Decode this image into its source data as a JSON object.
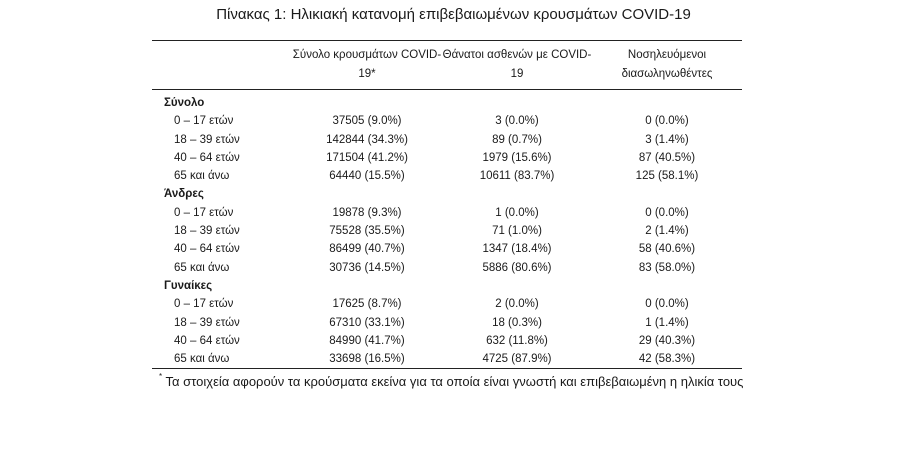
{
  "title": "Πίνακας 1: Ηλικιακή κατανομή επιβεβαιωμένων κρουσμάτων COVID-19",
  "headers": {
    "col1": "Σύνολο κρουσμάτων COVID-19*",
    "col2": "Θάνατοι ασθενών με COVID-19",
    "col3": "Νοσηλευόμενοι διασωληνωθέντες"
  },
  "groups": [
    {
      "name": "Σύνολο",
      "rows": [
        {
          "age": "0 – 17 ετών",
          "cases": "37505 (9.0%)",
          "deaths": "3 (0.0%)",
          "intubated": "0 (0.0%)"
        },
        {
          "age": "18 – 39 ετών",
          "cases": "142844 (34.3%)",
          "deaths": "89 (0.7%)",
          "intubated": "3 (1.4%)"
        },
        {
          "age": "40 – 64 ετών",
          "cases": "171504 (41.2%)",
          "deaths": "1979 (15.6%)",
          "intubated": "87 (40.5%)"
        },
        {
          "age": "65 και άνω",
          "cases": "64440 (15.5%)",
          "deaths": "10611 (83.7%)",
          "intubated": "125 (58.1%)"
        }
      ]
    },
    {
      "name": "Άνδρες",
      "rows": [
        {
          "age": "0 – 17 ετών",
          "cases": "19878 (9.3%)",
          "deaths": "1 (0.0%)",
          "intubated": "0 (0.0%)"
        },
        {
          "age": "18 – 39 ετών",
          "cases": "75528 (35.5%)",
          "deaths": "71 (1.0%)",
          "intubated": "2 (1.4%)"
        },
        {
          "age": "40 – 64 ετών",
          "cases": "86499 (40.7%)",
          "deaths": "1347 (18.4%)",
          "intubated": "58 (40.6%)"
        },
        {
          "age": "65 και άνω",
          "cases": "30736 (14.5%)",
          "deaths": "5886 (80.6%)",
          "intubated": "83 (58.0%)"
        }
      ]
    },
    {
      "name": "Γυναίκες",
      "rows": [
        {
          "age": "0 – 17 ετών",
          "cases": "17625 (8.7%)",
          "deaths": "2 (0.0%)",
          "intubated": "0 (0.0%)"
        },
        {
          "age": "18 – 39 ετών",
          "cases": "67310 (33.1%)",
          "deaths": "18 (0.3%)",
          "intubated": "1 (1.4%)"
        },
        {
          "age": "40 – 64 ετών",
          "cases": "84990 (41.7%)",
          "deaths": "632 (11.8%)",
          "intubated": "29 (40.3%)"
        },
        {
          "age": "65 και άνω",
          "cases": "33698 (16.5%)",
          "deaths": "4725 (87.9%)",
          "intubated": "42 (58.3%)"
        }
      ]
    }
  ],
  "footnote": {
    "mark": "*",
    "text": "Τα στοιχεία αφορούν τα κρούσματα εκείνα για τα οποία είναι γνωστή και επιβεβαιωμένη η ηλικία τους"
  }
}
